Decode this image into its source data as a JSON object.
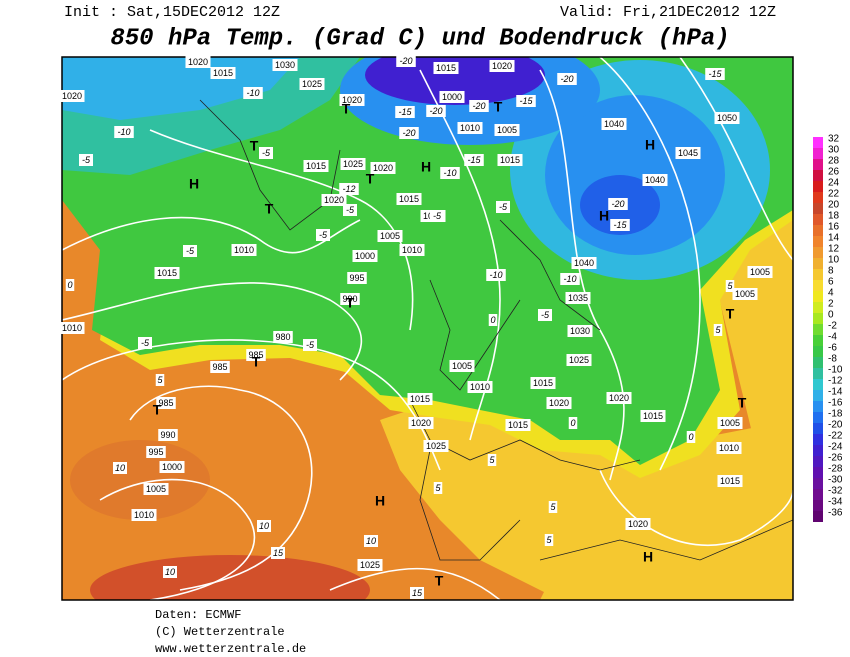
{
  "header": {
    "init": "Init : Sat,15DEC2012 12Z",
    "valid": "Valid: Fri,21DEC2012 12Z",
    "title": "850 hPa Temp. (Grad C) und Bodendruck (hPa)"
  },
  "footer": {
    "data": "Daten: ECMWF",
    "copyright": "(C) Wetterzentrale",
    "url": "www.wetterzentrale.de"
  },
  "legend": {
    "labels": [
      32,
      30,
      28,
      26,
      24,
      22,
      20,
      18,
      16,
      14,
      12,
      10,
      8,
      6,
      4,
      2,
      0,
      -2,
      -4,
      -6,
      -8,
      -10,
      -12,
      -14,
      -16,
      -18,
      -20,
      -22,
      -24,
      -26,
      -28,
      -30,
      -32,
      -34,
      -36
    ],
    "colors": [
      "#ff30ff",
      "#f020d0",
      "#e0108a",
      "#d01040",
      "#d81c1c",
      "#e03a1c",
      "#c8462a",
      "#e0582a",
      "#e8702a",
      "#f0842c",
      "#f09a30",
      "#f0b030",
      "#f5c830",
      "#f8dc30",
      "#f0e820",
      "#d0ec20",
      "#a8e820",
      "#70dc30",
      "#48d038",
      "#38c848",
      "#30c070",
      "#30c0a0",
      "#30c8d0",
      "#30b0e8",
      "#2890f0",
      "#2070f0",
      "#2050e8",
      "#3030e0",
      "#4020d0",
      "#5018c0",
      "#6010b0",
      "#6a10a0",
      "#700c90",
      "#6a0880",
      "#600470"
    ]
  },
  "map": {
    "isobar_labels": [
      1020,
      1015,
      1030,
      1025,
      1020,
      1015,
      1020,
      1000,
      1010,
      1005,
      1015,
      1040,
      1050,
      1045,
      1040,
      1015,
      1025,
      1020,
      1020,
      1015,
      1010,
      1005,
      1010,
      1000,
      995,
      990,
      1010,
      1015,
      1040,
      1035,
      1030,
      1025,
      1010,
      980,
      985,
      985,
      985,
      990,
      995,
      1000,
      1005,
      1010,
      1005,
      1010,
      1015,
      1020,
      1025,
      1015,
      1020,
      1015,
      1020,
      1015,
      1005,
      1010,
      1015,
      1020,
      1025,
      1005,
      1005,
      1020
    ],
    "temperature_labels": [
      -10,
      -5,
      -10,
      -5,
      -20,
      -15,
      -20,
      -20,
      -20,
      -15,
      -20,
      -15,
      -20,
      -15,
      -15,
      -10,
      -12,
      -5,
      -5,
      -5,
      -5,
      -10,
      -10,
      -5,
      -5,
      -5,
      -5,
      0,
      0,
      5,
      10,
      10,
      15,
      10,
      10,
      15,
      5,
      5,
      5,
      5,
      0,
      0,
      5,
      5
    ],
    "centers": [
      "H",
      "T",
      "T",
      "T",
      "H",
      "T",
      "H",
      "H",
      "T",
      "T",
      "T",
      "T",
      "T",
      "H",
      "H",
      "T",
      "T"
    ]
  }
}
